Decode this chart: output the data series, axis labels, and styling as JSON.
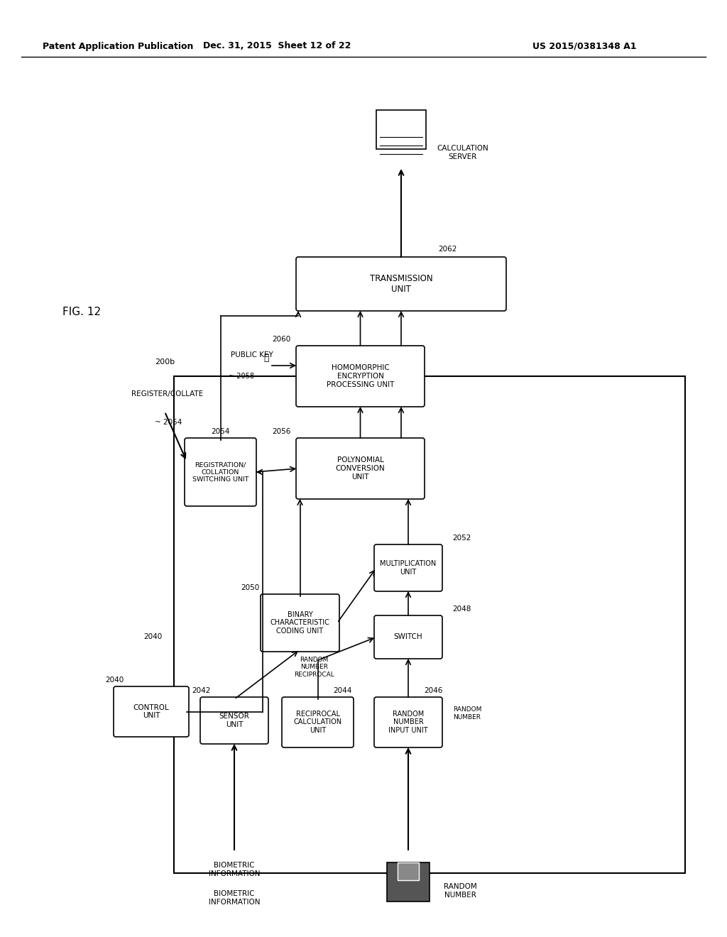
{
  "header_left": "Patent Application Publication",
  "header_mid": "Dec. 31, 2015  Sheet 12 of 22",
  "header_right": "US 2015/0381348 A1",
  "fig_label": "FIG. 12",
  "system_label": "200b",
  "register_collate_label": "REGISTER/COLLATE",
  "boxes": {
    "control_unit": {
      "label": "CONTROL\nUNIT",
      "ref": "2040"
    },
    "sensor_unit": {
      "label": "SENSOR\nUNIT",
      "ref": "2042"
    },
    "reciprocal_calc": {
      "label": "RECIPROCAL\nCALCULATION\nUNIT",
      "ref": "2044"
    },
    "random_number_input": {
      "label": "RANDOM\nNUMBER\nINPUT UNIT",
      "ref": "2046"
    },
    "switch": {
      "label": "SWITCH",
      "ref": "2048"
    },
    "binary_coding": {
      "label": "BINARY\nCHARACTERISTIC\nCODING UNIT",
      "ref": "2050"
    },
    "multiplication": {
      "label": "MULTIPLICATION\nUNIT",
      "ref": "2052"
    },
    "registration_switching": {
      "label": "REGISTRATION/\nCOLLATION\nSWITCHING UNIT",
      "ref": "2054"
    },
    "polynomial_conv": {
      "label": "POLYNOMIAL\nCONVERSION\nUNIT",
      "ref": "2056"
    },
    "homomorphic": {
      "label": "HOMOMORPHIC\nENCRYPTION\nPROCESSING UNIT",
      "ref": "2060"
    },
    "transmission": {
      "label": "TRANSMISSION\nUNIT",
      "ref": "2062"
    }
  },
  "annotations": {
    "public_key": "PUBLIC KEY",
    "public_key_ref": "2058",
    "random_number_reciprocal": "RANDOM\nNUMBER\nRECIPROCAL",
    "random_number_label": "RANDOM\nNUMBER",
    "biometric_info": "BIOMETRIC\nINFORMATION",
    "random_number_bottom": "RANDOM\nNUMBER",
    "calc_server": "CALCULATION\nSERVER"
  }
}
